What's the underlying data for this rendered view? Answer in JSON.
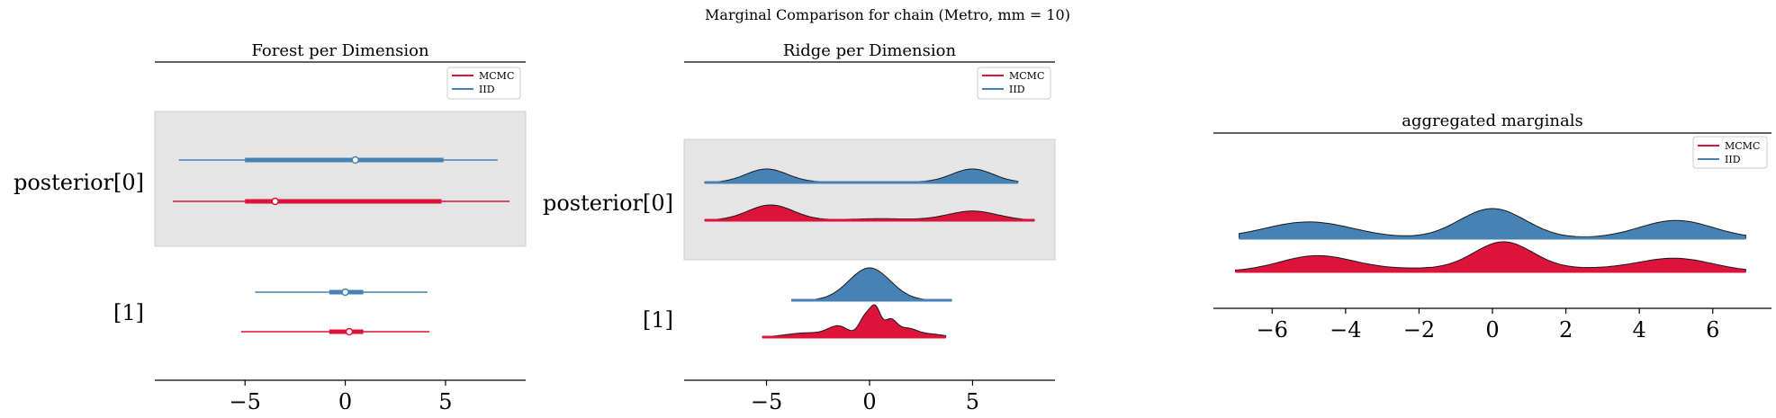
{
  "suptitle": "Marginal Comparison for chain (Metro, mm = 10)",
  "colors": {
    "MCMC": "#DC143C",
    "IID": "#4682B4",
    "highlight": "#E5E5E5"
  },
  "chart_data": [
    {
      "type": "forest",
      "title": "Forest per Dimension",
      "xlim": [
        -9.5,
        9.0
      ],
      "xticks": [
        -5,
        0,
        5
      ],
      "xtick_labels": [
        "−5",
        "0",
        "5"
      ],
      "legend": {
        "placement": "top-right",
        "entries": [
          "MCMC",
          "IID"
        ]
      },
      "rows": [
        {
          "label": "posterior[0]",
          "highlighted": true,
          "series": [
            {
              "name": "IID",
              "hdi": [
                -8.3,
                7.6
              ],
              "iqr": [
                -5.0,
                4.9
              ],
              "center": 0.5
            },
            {
              "name": "MCMC",
              "hdi": [
                -8.6,
                8.2
              ],
              "iqr": [
                -5.0,
                4.8
              ],
              "center": -3.5
            }
          ]
        },
        {
          "label": "[1]",
          "highlighted": false,
          "series": [
            {
              "name": "IID",
              "hdi": [
                -4.5,
                4.1
              ],
              "iqr": [
                -0.8,
                0.9
              ],
              "center": 0.0
            },
            {
              "name": "MCMC",
              "hdi": [
                -5.2,
                4.2
              ],
              "iqr": [
                -0.8,
                0.9
              ],
              "center": 0.2
            }
          ]
        }
      ]
    },
    {
      "type": "ridge",
      "title": "Ridge per Dimension",
      "xlim": [
        -9.0,
        9.0
      ],
      "xticks": [
        -5,
        0,
        5
      ],
      "xtick_labels": [
        "−5",
        "0",
        "5"
      ],
      "legend": {
        "placement": "top-right",
        "entries": [
          "MCMC",
          "IID"
        ]
      },
      "rows": [
        {
          "label": "posterior[0]",
          "highlighted": true,
          "series": [
            {
              "name": "IID",
              "range": [
                -8.0,
                7.2
              ],
              "peaks": [
                {
                  "mu": -5.0,
                  "sigma": 1.0,
                  "h": 1.0
                },
                {
                  "mu": 5.0,
                  "sigma": 1.0,
                  "h": 1.0
                },
                {
                  "mu": 0.0,
                  "sigma": 2.5,
                  "h": 0.05
                }
              ]
            },
            {
              "name": "MCMC",
              "range": [
                -8.0,
                8.0
              ],
              "peaks": [
                {
                  "mu": -4.8,
                  "sigma": 1.1,
                  "h": 1.0
                },
                {
                  "mu": 5.0,
                  "sigma": 1.2,
                  "h": 0.6
                },
                {
                  "mu": 0.5,
                  "sigma": 1.5,
                  "h": 0.1
                }
              ]
            }
          ]
        },
        {
          "label": "[1]",
          "highlighted": false,
          "series": [
            {
              "name": "IID",
              "range": [
                -3.8,
                4.0
              ],
              "peaks": [
                {
                  "mu": 0.0,
                  "sigma": 1.0,
                  "h": 1.0
                }
              ]
            },
            {
              "name": "MCMC",
              "range": [
                -5.2,
                3.7
              ],
              "peaks": [
                {
                  "mu": 0.3,
                  "sigma": 0.25,
                  "h": 0.9
                },
                {
                  "mu": -0.2,
                  "sigma": 0.3,
                  "h": 0.7
                },
                {
                  "mu": 1.0,
                  "sigma": 0.3,
                  "h": 0.55
                },
                {
                  "mu": -1.5,
                  "sigma": 0.5,
                  "h": 0.35
                },
                {
                  "mu": 1.8,
                  "sigma": 0.5,
                  "h": 0.3
                },
                {
                  "mu": -3.0,
                  "sigma": 1.0,
                  "h": 0.15
                },
                {
                  "mu": 3.0,
                  "sigma": 0.6,
                  "h": 0.1
                }
              ]
            }
          ]
        }
      ]
    },
    {
      "type": "ridge",
      "title": "aggregated marginals",
      "xlim": [
        -7.6,
        7.6
      ],
      "xticks": [
        -6,
        -4,
        -2,
        0,
        2,
        4,
        6
      ],
      "xtick_labels": [
        "−6",
        "−4",
        "−2",
        "0",
        "2",
        "4",
        "6"
      ],
      "legend": {
        "placement": "top-right",
        "entries": [
          "MCMC",
          "IID"
        ]
      },
      "series": [
        {
          "name": "IID",
          "range": [
            -6.9,
            6.9
          ],
          "peaks": [
            {
              "mu": -5.0,
              "sigma": 1.2,
              "h": 0.55
            },
            {
              "mu": 0.0,
              "sigma": 0.9,
              "h": 1.0
            },
            {
              "mu": 5.0,
              "sigma": 1.0,
              "h": 0.6
            }
          ]
        },
        {
          "name": "MCMC",
          "range": [
            -7.0,
            6.9
          ],
          "peaks": [
            {
              "mu": -4.8,
              "sigma": 1.0,
              "h": 0.55
            },
            {
              "mu": 0.3,
              "sigma": 0.8,
              "h": 1.0
            },
            {
              "mu": 5.0,
              "sigma": 1.0,
              "h": 0.45
            },
            {
              "mu": -2.0,
              "sigma": 1.5,
              "h": 0.1
            },
            {
              "mu": 2.5,
              "sigma": 1.5,
              "h": 0.1
            }
          ]
        }
      ]
    }
  ]
}
